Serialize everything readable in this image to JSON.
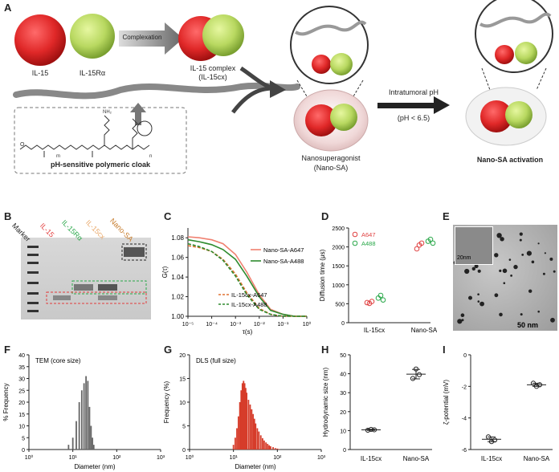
{
  "panels": {
    "A": {
      "letter": "A",
      "labels": {
        "il15": "IL-15",
        "il15ra": "IL-15Rα",
        "complexation": "Complexation",
        "il15_complex_line1": "IL-15 complex",
        "il15_complex_line2": "(IL-15cx)",
        "cloak": "pH-sensitive polymeric cloak",
        "nano_line1": "Nanosuperagonist",
        "nano_line2": "(Nano-SA)",
        "intratumoral": "Intratumoral pH",
        "ph": "(pH < 6.5)",
        "activation": "Nano-SA activation"
      },
      "chem": {
        "m": "m",
        "n": "n",
        "nh2": "NH₂",
        "o": "O",
        "h": "H",
        "n_atom": "N"
      }
    },
    "B": {
      "letter": "B",
      "lanes": [
        "Marker",
        "IL-15",
        "IL-15Rα",
        "IL-15cx",
        "Nano-SA"
      ],
      "lane_colors": [
        "#222222",
        "#e23b3b",
        "#2aa84a",
        "#e9a86a",
        "#c77c2c"
      ]
    },
    "C": {
      "letter": "C",
      "ylabel": "G(τ)",
      "xlabel": "τ(s)",
      "yticks": [
        "1.08",
        "1.06",
        "1.04",
        "1.02",
        "1.00"
      ],
      "xticks": [
        "10⁻⁵",
        "10⁻⁴",
        "10⁻³",
        "10⁻²",
        "10⁻¹",
        "10⁰"
      ],
      "legend": [
        "Nano-SA-A647",
        "Nano-SA-A488",
        "IL-15cx-A647",
        "IL-15cx-A488"
      ]
    },
    "D": {
      "letter": "D",
      "ylabel": "Diffusion time (μs)",
      "yticks": [
        "2500",
        "2000",
        "1500",
        "1000",
        "500",
        "0"
      ],
      "categories": [
        "IL-15cx",
        "Nano-SA"
      ],
      "legend": [
        "A647",
        "A488"
      ]
    },
    "E": {
      "letter": "E",
      "scale_inset": "20nm",
      "scale_main": "50 nm"
    },
    "F": {
      "letter": "F",
      "title": "TEM (core size)",
      "ylabel": "% Frequency",
      "xlabel": "Diameter (nm)",
      "yticks": [
        "40",
        "35",
        "30",
        "25",
        "20",
        "15",
        "10",
        "5",
        "0"
      ],
      "xticks": [
        "10⁰",
        "10¹",
        "10²",
        "10³"
      ]
    },
    "G": {
      "letter": "G",
      "title": "DLS (full size)",
      "ylabel": "Frequency (%)",
      "xlabel": "Diameter (nm)",
      "yticks": [
        "20",
        "15",
        "10",
        "5",
        "0"
      ],
      "xticks": [
        "10⁰",
        "10¹",
        "10²",
        "10³"
      ]
    },
    "H": {
      "letter": "H",
      "ylabel": "Hydrodynamic size (nm)",
      "yticks": [
        "50",
        "40",
        "30",
        "20",
        "10",
        "0"
      ],
      "categories": [
        "IL-15cx",
        "Nano-SA"
      ]
    },
    "I": {
      "letter": "I",
      "ylabel": "ζ-potential (mV)",
      "yticks": [
        "0",
        "-2",
        "-4",
        "-6"
      ],
      "categories": [
        "IL-15cx",
        "Nano-SA"
      ]
    }
  },
  "chart_data": [
    {
      "panel": "C",
      "type": "line",
      "xscale": "log",
      "xlim": [
        1e-05,
        1
      ],
      "ylim": [
        1.0,
        1.09
      ],
      "x": [
        1e-05,
        3e-05,
        0.0001,
        0.0003,
        0.001,
        0.003,
        0.01,
        0.03,
        0.1,
        0.3,
        1
      ],
      "series": [
        {
          "name": "Nano-SA-A647",
          "color": "#f08070",
          "dash": false,
          "values": [
            1.081,
            1.08,
            1.078,
            1.074,
            1.063,
            1.045,
            1.022,
            1.007,
            1.002,
            1.0,
            1.0
          ]
        },
        {
          "name": "Nano-SA-A488",
          "color": "#2e8b2e",
          "dash": false,
          "values": [
            1.078,
            1.076,
            1.073,
            1.068,
            1.058,
            1.041,
            1.02,
            1.006,
            1.002,
            1.0,
            1.0
          ]
        },
        {
          "name": "IL-15cx-A647",
          "color": "#e07030",
          "dash": true,
          "values": [
            1.072,
            1.07,
            1.066,
            1.058,
            1.043,
            1.024,
            1.008,
            1.002,
            1.0,
            1.0,
            1.0
          ]
        },
        {
          "name": "IL-15cx-A488",
          "color": "#2e8b2e",
          "dash": true,
          "values": [
            1.074,
            1.071,
            1.066,
            1.057,
            1.041,
            1.022,
            1.007,
            1.002,
            1.0,
            1.0,
            1.0
          ]
        }
      ]
    },
    {
      "panel": "D",
      "type": "scatter",
      "categories": [
        "IL-15cx",
        "Nano-SA"
      ],
      "ylim": [
        0,
        2500
      ],
      "series": [
        {
          "name": "A647",
          "color": "#e04040",
          "points": [
            [
              0,
              530
            ],
            [
              0,
              510
            ],
            [
              0,
              560
            ],
            [
              1,
              1950
            ],
            [
              1,
              2050
            ],
            [
              1,
              2100
            ]
          ]
        },
        {
          "name": "A488",
          "color": "#2aa84a",
          "points": [
            [
              0,
              650
            ],
            [
              0,
              720
            ],
            [
              0,
              600
            ],
            [
              1,
              2150
            ],
            [
              1,
              2200
            ],
            [
              1,
              2100
            ]
          ]
        }
      ]
    },
    {
      "panel": "F",
      "type": "bar",
      "xscale": "log",
      "xlim": [
        1,
        1000
      ],
      "ylim": [
        0,
        40
      ],
      "x": [
        8,
        10,
        12,
        14,
        16,
        18,
        20,
        22,
        24,
        26,
        28,
        30
      ],
      "values": [
        2,
        5,
        12,
        20,
        25,
        28,
        31,
        29,
        18,
        10,
        5,
        2
      ],
      "color": "#666666"
    },
    {
      "panel": "G",
      "type": "bar",
      "xscale": "log",
      "xlim": [
        1,
        1000
      ],
      "ylim": [
        0,
        20
      ],
      "x": [
        10,
        11,
        12,
        13,
        14,
        15,
        16,
        17,
        18,
        19,
        20,
        22,
        24,
        26,
        28,
        30,
        32,
        35,
        38,
        42,
        46,
        50,
        55,
        60,
        65,
        70,
        80,
        90,
        100,
        110
      ],
      "values": [
        1,
        2.5,
        4.5,
        7,
        10,
        12.5,
        14,
        14.5,
        14,
        13,
        12,
        10.5,
        9.5,
        8.5,
        7.5,
        6.5,
        5.5,
        4.5,
        3.8,
        3,
        2.4,
        1.9,
        1.5,
        1.2,
        0.9,
        0.7,
        0.5,
        0.3,
        0.2,
        0.1
      ],
      "color": "#d63c2a"
    },
    {
      "panel": "H",
      "type": "scatter",
      "categories": [
        "IL-15cx",
        "Nano-SA"
      ],
      "ylim": [
        0,
        50
      ],
      "points": [
        [
          0,
          10.2
        ],
        [
          0,
          10.6
        ],
        [
          0,
          10.4
        ],
        [
          1,
          37.5
        ],
        [
          1,
          42.5
        ],
        [
          1,
          39.5
        ]
      ],
      "means": [
        10.4,
        39.8
      ],
      "errors": [
        0.3,
        2.5
      ]
    },
    {
      "panel": "I",
      "type": "scatter",
      "categories": [
        "IL-15cx",
        "Nano-SA"
      ],
      "ylim": [
        -6,
        0
      ],
      "points": [
        [
          0,
          -5.2
        ],
        [
          0,
          -5.5
        ],
        [
          0,
          -5.4
        ],
        [
          1,
          -1.8
        ],
        [
          1,
          -2.0
        ],
        [
          1,
          -1.9
        ]
      ],
      "means": [
        -5.35,
        -1.9
      ],
      "errors": [
        0.15,
        0.1
      ]
    }
  ]
}
